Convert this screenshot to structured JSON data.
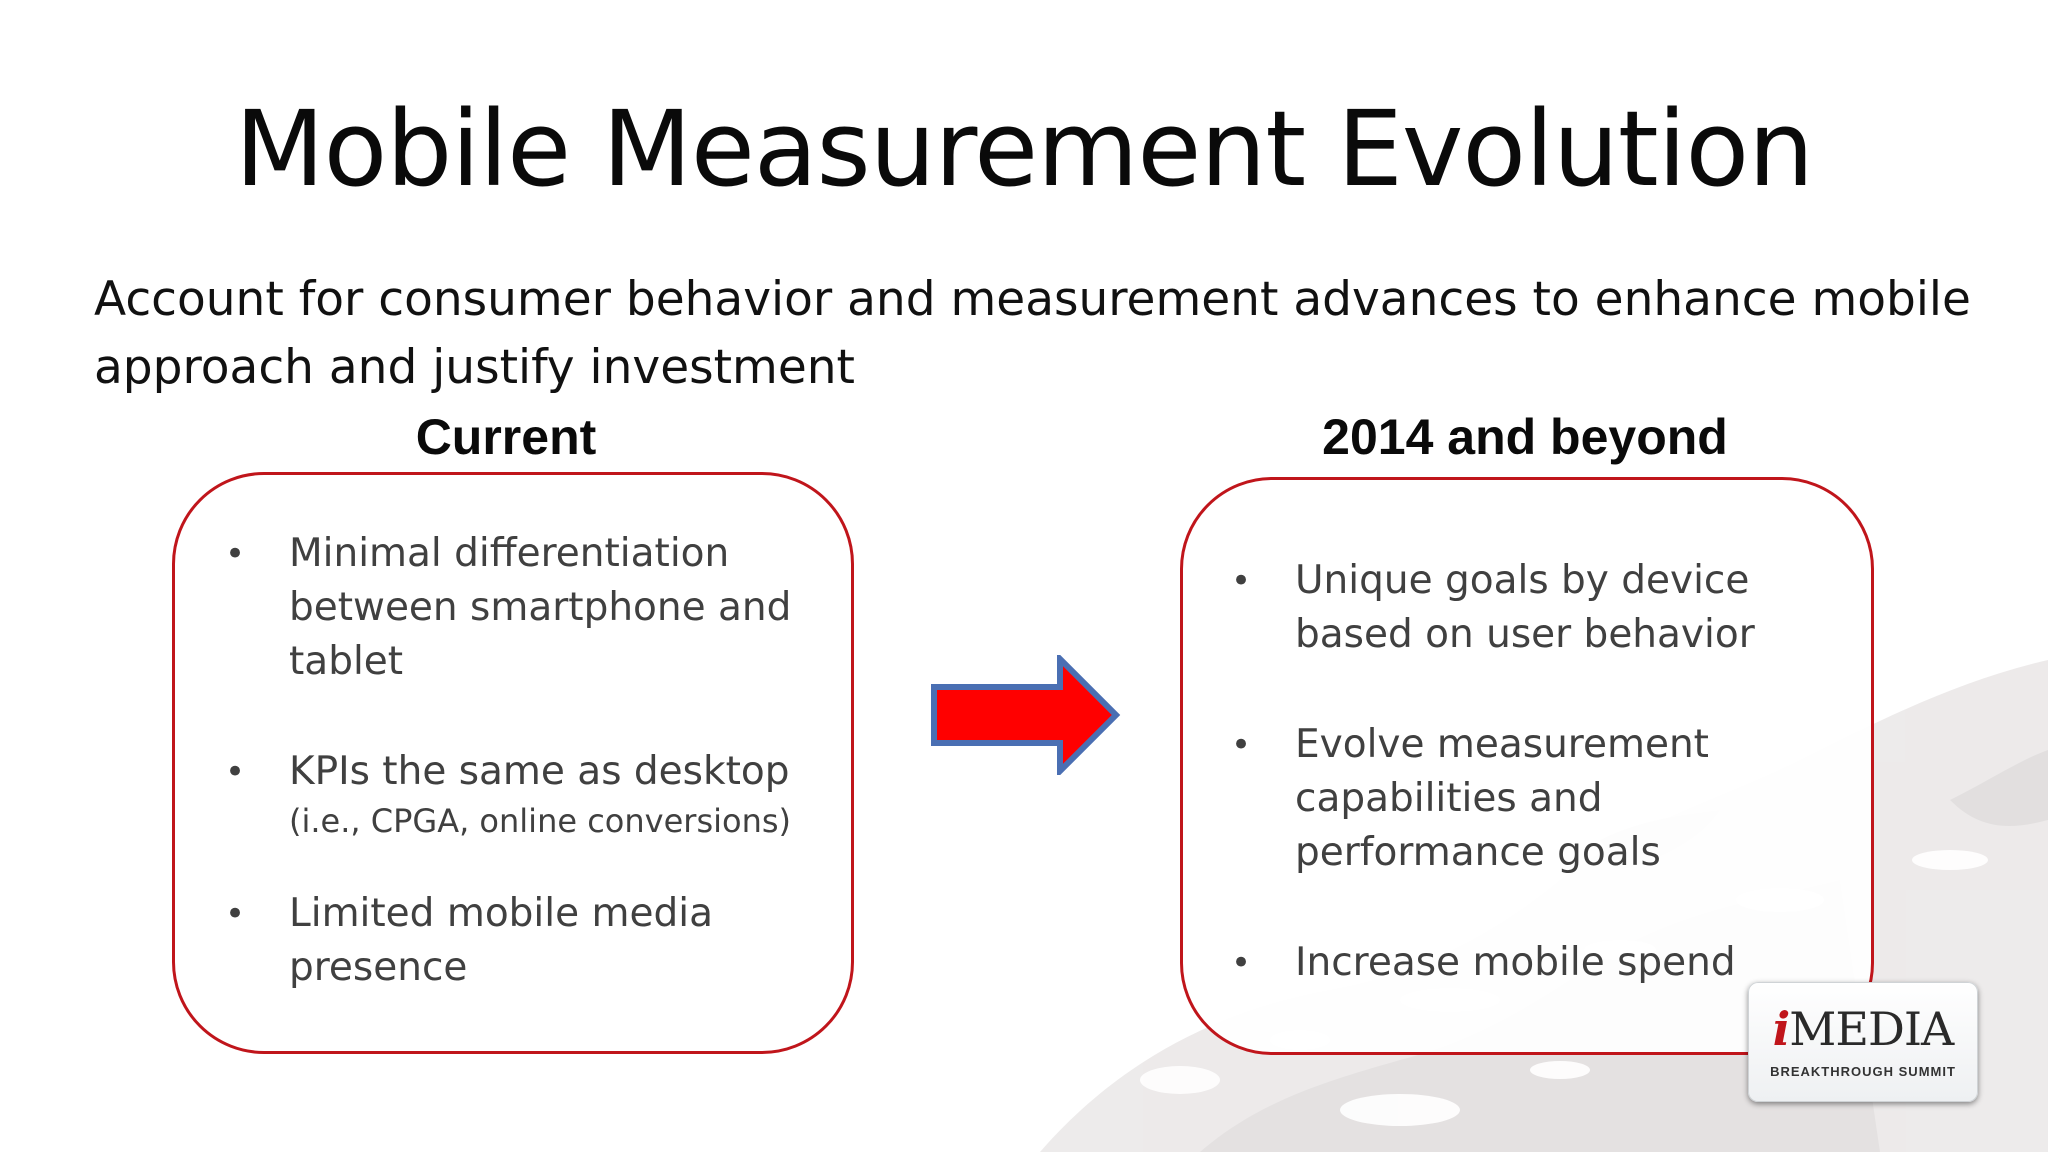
{
  "slide": {
    "title": "Mobile Measurement Evolution",
    "subtitle": "Account for consumer behavior and measurement advances to enhance mobile approach and justify investment"
  },
  "left": {
    "heading": "Current",
    "items": [
      {
        "text": "Minimal differentiation between smartphone and tablet",
        "sub": ""
      },
      {
        "text": "KPIs the same as desktop",
        "sub": "(i.e., CPGA, online conversions)"
      },
      {
        "text": "Limited mobile media presence",
        "sub": ""
      }
    ]
  },
  "right": {
    "heading": "2014 and beyond",
    "items": [
      {
        "text": "Unique goals by device based on user behavior"
      },
      {
        "text": "Evolve measurement capabilities and performance goals"
      },
      {
        "text": "Increase mobile spend"
      }
    ]
  },
  "logo": {
    "brand_i": "i",
    "brand_rest": "MEDIA",
    "tagline": "BREAKTHROUGH SUMMIT"
  },
  "colors": {
    "box_border": "#c0151b",
    "arrow_fill": "#ff0000",
    "arrow_stroke": "#4a6fb3"
  }
}
